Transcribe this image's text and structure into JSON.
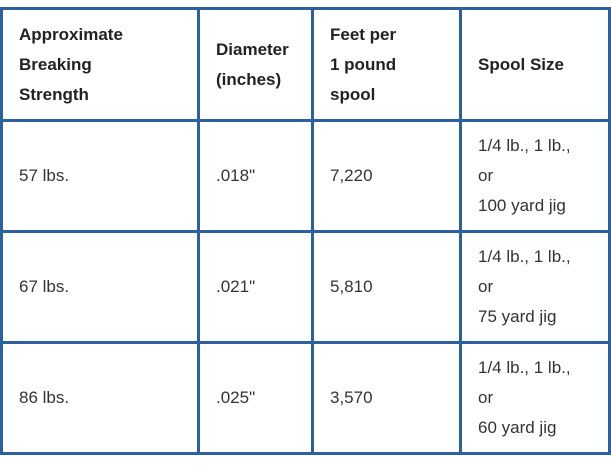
{
  "table": {
    "header": [
      [
        "Approximate",
        "Breaking",
        "Strength"
      ],
      [
        "Diameter",
        "(inches)"
      ],
      [
        "Feet per",
        "1 pound",
        "spool"
      ],
      [
        "Spool Size"
      ]
    ],
    "rows": [
      [
        [
          "57 lbs."
        ],
        [
          ".018\""
        ],
        [
          "7,220"
        ],
        [
          "1/4 lb., 1 lb.,",
          "or",
          "100 yard jig"
        ]
      ],
      [
        [
          "67 lbs."
        ],
        [
          ".021\""
        ],
        [
          "5,810"
        ],
        [
          "1/4 lb., 1 lb.,",
          "or",
          "75 yard jig"
        ]
      ],
      [
        [
          "86 lbs."
        ],
        [
          ".025\""
        ],
        [
          "3,570"
        ],
        [
          "1/4 lb., 1 lb.,",
          "or",
          "60 yard jig"
        ]
      ]
    ]
  }
}
